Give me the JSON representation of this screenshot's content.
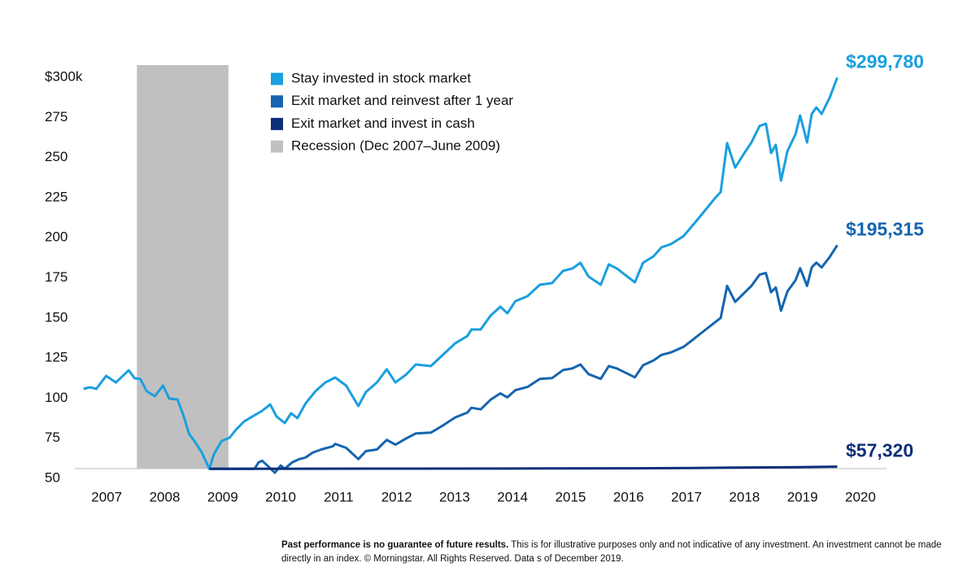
{
  "chart_data": {
    "type": "line",
    "xlim": [
      2006.85,
      2020.85
    ],
    "xticks": [
      {
        "value": 2007.4,
        "label": "2007"
      },
      {
        "value": 2008.4,
        "label": "2008"
      },
      {
        "value": 2009.4,
        "label": "2009"
      },
      {
        "value": 2010.4,
        "label": "2010"
      },
      {
        "value": 2011.4,
        "label": "2011"
      },
      {
        "value": 2012.4,
        "label": "2012"
      },
      {
        "value": 2013.4,
        "label": "2013"
      },
      {
        "value": 2014.4,
        "label": "2014"
      },
      {
        "value": 2015.4,
        "label": "2015"
      },
      {
        "value": 2016.4,
        "label": "2016"
      },
      {
        "value": 2017.4,
        "label": "2017"
      },
      {
        "value": 2018.4,
        "label": "2018"
      },
      {
        "value": 2019.4,
        "label": "2019"
      },
      {
        "value": 2020.4,
        "label": "2020"
      }
    ],
    "ylim": [
      50,
      300
    ],
    "yticks": [
      50,
      75,
      100,
      125,
      150,
      175,
      200,
      225,
      250,
      275,
      {
        "value": 300,
        "label": "$300k"
      }
    ],
    "grid": false,
    "recession": {
      "label": "Recession (Dec 2007–June 2009)",
      "x": [
        2007.92,
        2009.5
      ],
      "color": "#c0c0c0"
    },
    "series": [
      {
        "name": "Stay invested in stock market",
        "color": "#1a9fdf",
        "end_label": "$299,780",
        "x": [
          2007.0,
          2007.11,
          2007.22,
          2007.39,
          2007.56,
          2007.78,
          2007.88,
          2007.98,
          2008.09,
          2008.23,
          2008.37,
          2008.48,
          2008.62,
          2008.72,
          2008.82,
          2008.93,
          2009.04,
          2009.17,
          2009.25,
          2009.38,
          2009.52,
          2009.63,
          2009.77,
          2009.91,
          2010.08,
          2010.22,
          2010.33,
          2010.47,
          2010.58,
          2010.69,
          2010.83,
          2011.0,
          2011.17,
          2011.34,
          2011.53,
          2011.74,
          2011.87,
          2012.06,
          2012.23,
          2012.38,
          2012.57,
          2012.73,
          2012.99,
          2013.2,
          2013.41,
          2013.62,
          2013.69,
          2013.85,
          2014.02,
          2014.19,
          2014.31,
          2014.45,
          2014.66,
          2014.87,
          2015.08,
          2015.27,
          2015.43,
          2015.57,
          2015.71,
          2015.92,
          2016.06,
          2016.2,
          2016.51,
          2016.65,
          2016.83,
          2016.97,
          2017.13,
          2017.35,
          2017.53,
          2017.67,
          2017.9,
          2017.99,
          2018.1,
          2018.24,
          2018.38,
          2018.52,
          2018.66,
          2018.77,
          2018.86,
          2018.94,
          2019.03,
          2019.14,
          2019.28,
          2019.36,
          2019.48,
          2019.56,
          2019.64,
          2019.73,
          2019.87,
          2020.0
        ],
        "values": [
          105.8,
          106.8,
          105.8,
          113.9,
          109.8,
          117.4,
          112.4,
          111.9,
          104.3,
          101.2,
          107.8,
          99.7,
          99.2,
          89.6,
          77.9,
          72.3,
          66.2,
          56,
          65.2,
          73.3,
          75.4,
          80.4,
          85.5,
          88.5,
          92.1,
          96.1,
          88.5,
          84.5,
          90.6,
          87.5,
          96.7,
          104.3,
          109.8,
          112.9,
          107.8,
          95.1,
          103.8,
          109.8,
          118.0,
          109.8,
          114.9,
          121.0,
          120.0,
          127.1,
          134.2,
          138.7,
          142.8,
          142.8,
          151.4,
          157.0,
          152.9,
          160.5,
          163.6,
          170.7,
          171.7,
          179.3,
          180.8,
          184.4,
          175.8,
          170.7,
          183.4,
          180.8,
          172.2,
          184.4,
          188.4,
          194.0,
          196.0,
          201,
          208.7,
          214.8,
          225,
          228.5,
          259,
          243.7,
          251.8,
          259.4,
          269.6,
          271.1,
          252.8,
          257.9,
          235.6,
          253.9,
          264.5,
          276.2,
          259.4,
          277.2,
          281.2,
          277.2,
          287.3,
          299.78
        ]
      },
      {
        "name": "Exit market and reinvest after 1 year",
        "color": "#1565b0",
        "end_label": "$195,315",
        "x": [
          2009.17,
          2009.95,
          2010.02,
          2010.08,
          2010.2,
          2010.3,
          2010.4,
          2010.47,
          2010.6,
          2010.72,
          2010.83,
          2010.95,
          2011.1,
          2011.3,
          2011.34,
          2011.53,
          2011.74,
          2011.87,
          2012.06,
          2012.23,
          2012.38,
          2012.57,
          2012.73,
          2012.99,
          2013.2,
          2013.41,
          2013.62,
          2013.69,
          2013.85,
          2014.02,
          2014.19,
          2014.31,
          2014.45,
          2014.66,
          2014.87,
          2015.08,
          2015.27,
          2015.43,
          2015.57,
          2015.71,
          2015.92,
          2016.06,
          2016.2,
          2016.51,
          2016.65,
          2016.83,
          2016.97,
          2017.13,
          2017.35,
          2017.53,
          2017.67,
          2017.9,
          2017.99,
          2018.1,
          2018.24,
          2018.38,
          2018.52,
          2018.66,
          2018.77,
          2018.86,
          2018.94,
          2019.03,
          2019.14,
          2019.28,
          2019.36,
          2019.48,
          2019.56,
          2019.64,
          2019.73,
          2019.87,
          2020.0
        ],
        "values": [
          56,
          56,
          60,
          61,
          57,
          53.5,
          58,
          56,
          60,
          62,
          63,
          66,
          68,
          70,
          71.5,
          69,
          62,
          67,
          68,
          74,
          71,
          75,
          78,
          78.5,
          83,
          88,
          91,
          94,
          93,
          99,
          103,
          100.5,
          105,
          107,
          112,
          112.5,
          117.5,
          118.5,
          121,
          115,
          112,
          120,
          118.5,
          113,
          120.5,
          123.5,
          127,
          128.5,
          132,
          137,
          141,
          147.5,
          150,
          170,
          160,
          165,
          170,
          177,
          178,
          166,
          169,
          154.5,
          166.5,
          173.5,
          181,
          170,
          181.5,
          184.5,
          181.5,
          188,
          195.315
        ]
      },
      {
        "name": "Exit market and invest in cash",
        "color": "#0d2f7a",
        "end_label": "$57,320",
        "x": [
          2009.17,
          2012.0,
          2015.0,
          2016.5,
          2017.5,
          2018.5,
          2019.3,
          2020.0
        ],
        "values": [
          56,
          56.1,
          56.2,
          56.3,
          56.5,
          56.8,
          57.0,
          57.32
        ]
      }
    ]
  },
  "footnote": {
    "bold": "Past performance is no guarantee of future results.",
    "text": "This is for illustrative purposes only and not indicative of any investment. An investment cannot be made directly in an index. © Morningstar. All Rights Reserved. Data s of December 2019."
  }
}
